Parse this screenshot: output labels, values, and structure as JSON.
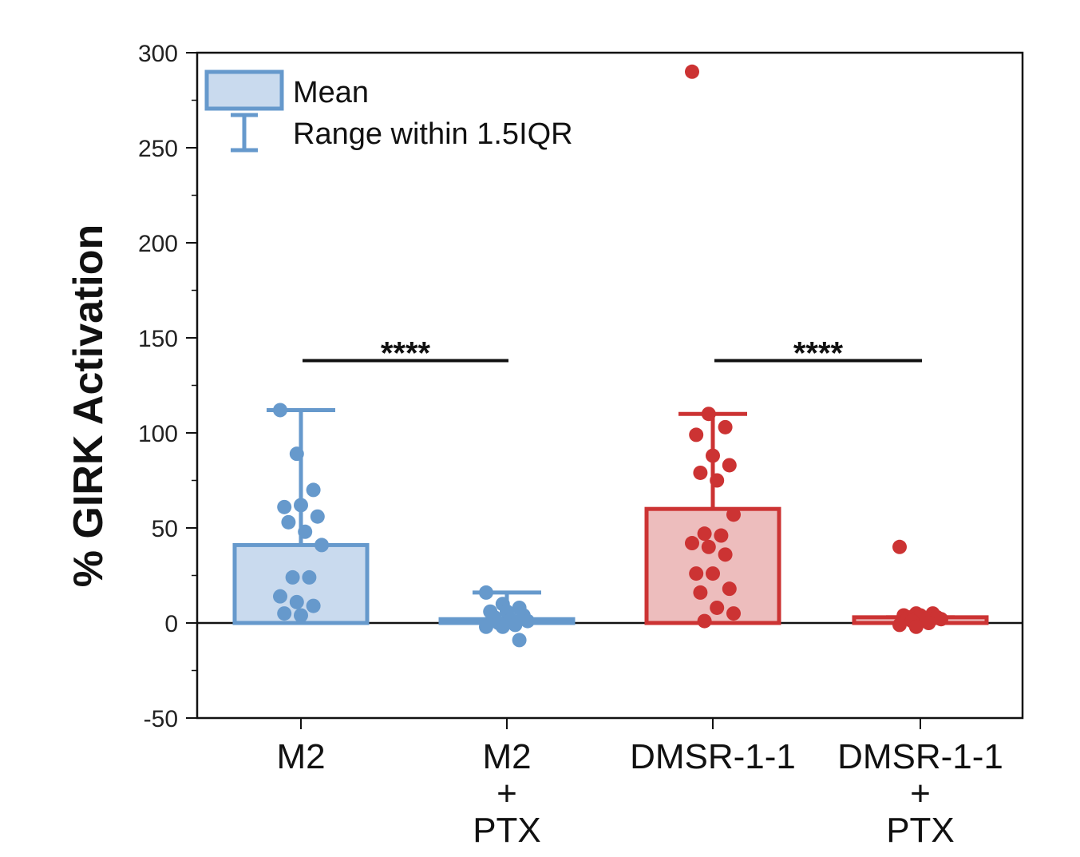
{
  "chart_data": {
    "type": "bar",
    "ylabel": "% GIRK Activation",
    "ylim": [
      -50,
      300
    ],
    "yticks": [
      -50,
      0,
      50,
      100,
      150,
      200,
      250,
      300
    ],
    "grid": false,
    "legend": {
      "position": "top-left",
      "entries": [
        {
          "label": "Mean",
          "kind": "box"
        },
        {
          "label": "Range within 1.5IQR",
          "kind": "whisker"
        }
      ]
    },
    "categories": [
      {
        "lines": [
          "M2"
        ],
        "color": "#6699CC",
        "fill": "#C9DAEE"
      },
      {
        "lines": [
          "M2",
          "+",
          "PTX"
        ],
        "color": "#6699CC",
        "fill": "#C9DAEE"
      },
      {
        "lines": [
          "DMSR-1-1"
        ],
        "color": "#CC3333",
        "fill": "#EDBDBD"
      },
      {
        "lines": [
          "DMSR-1-1",
          "+",
          "PTX"
        ],
        "color": "#CC3333",
        "fill": "#EDBDBD"
      }
    ],
    "means": [
      41,
      2,
      60,
      3
    ],
    "whisker_max": [
      112,
      16,
      110,
      3
    ],
    "points": [
      [
        112,
        89,
        70,
        61,
        62,
        56,
        53,
        48,
        41,
        24,
        24,
        14,
        11,
        9,
        5,
        4
      ],
      [
        16,
        10,
        8,
        6,
        6,
        4,
        3,
        2,
        1,
        0,
        -1,
        -2,
        -2,
        -9
      ],
      [
        290,
        110,
        103,
        99,
        88,
        83,
        79,
        75,
        57,
        47,
        46,
        42,
        40,
        36,
        26,
        26,
        18,
        16,
        8,
        5,
        1
      ],
      [
        40,
        5,
        5,
        4,
        4,
        3,
        3,
        2,
        2,
        1,
        0,
        -1,
        -2
      ]
    ],
    "significance": [
      {
        "between": [
          0,
          1
        ],
        "label": "****"
      },
      {
        "between": [
          2,
          3
        ],
        "label": "****"
      }
    ]
  }
}
